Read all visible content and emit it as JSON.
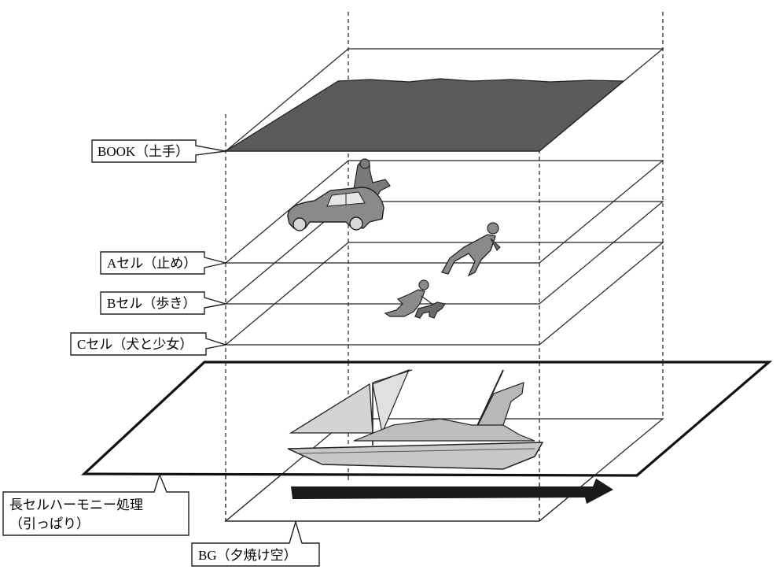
{
  "labels": {
    "book": "BOOK（土手）",
    "a_cel": "Aセル（止め）",
    "b_cel": "Bセル（歩き）",
    "c_cel": "Cセル（犬と少女）",
    "harmony_line1": "長セルハーモニー処理",
    "harmony_line2": "（引っぱり）",
    "bg": "BG（夕焼け空）"
  },
  "colors": {
    "book_fill": "#5a5a5a",
    "figure_fill": "#8a8a8a",
    "figure_dark": "#4a4a4a",
    "boat_fill": "#c8c8c8",
    "arrow_fill": "#1a1a1a"
  },
  "icons": {
    "car": "car-with-rider-icon",
    "walker": "walking-man-icon",
    "girl_dog": "girl-with-dog-icon",
    "boat": "sailboat-ship-icon",
    "arrow": "pull-direction-arrow-icon"
  }
}
